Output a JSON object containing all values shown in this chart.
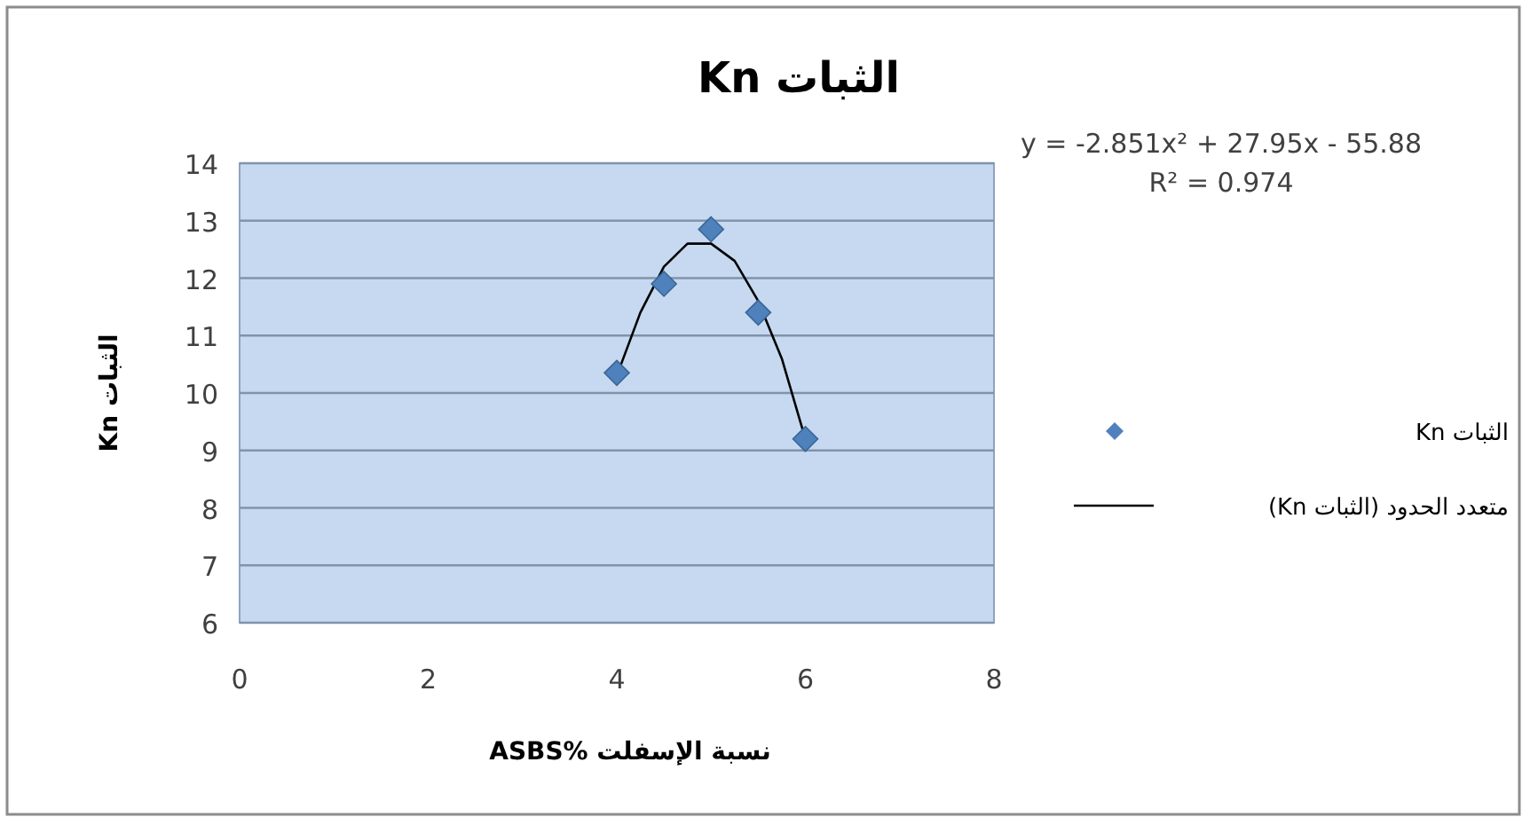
{
  "chart_data": {
    "type": "scatter",
    "title": "الثبات Kn",
    "xlabel": "نسبة الإسفلت %ASBS",
    "ylabel": "الثبات Kn",
    "annotations": [
      "y = -2.851x² + 27.95x - 55.88",
      "R² = 0.974"
    ],
    "series": [
      {
        "name": "الثبات Kn",
        "color": "#4f81bd",
        "marker": "diamond",
        "x": [
          4,
          4.5,
          5,
          5.5,
          6
        ],
        "values": [
          10.35,
          11.9,
          12.85,
          11.4,
          9.2
        ]
      },
      {
        "name": "متعدد الحدود (الثبات Kn)",
        "type": "line",
        "color": "#000000",
        "marker": "none",
        "line_style": "solid",
        "x": [
          4,
          4.25,
          4.5,
          4.75,
          5,
          5.25,
          5.5,
          5.75,
          6
        ],
        "values": [
          10.3,
          11.4,
          12.2,
          12.6,
          12.6,
          12.3,
          11.6,
          10.6,
          9.2
        ]
      }
    ],
    "xlim": [
      0,
      8
    ],
    "xticks": [
      0,
      2,
      4,
      6,
      8
    ],
    "ylim": [
      6,
      14
    ],
    "yticks": [
      6,
      7,
      8,
      9,
      10,
      11,
      12,
      13,
      14
    ],
    "grid": "y",
    "legend": "right"
  }
}
